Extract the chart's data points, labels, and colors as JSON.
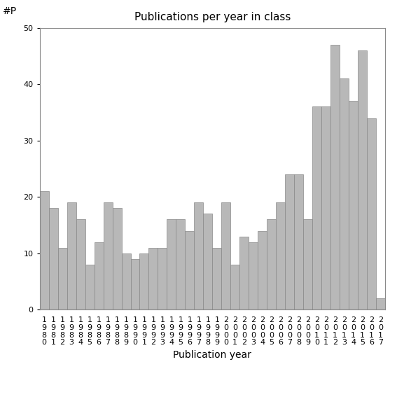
{
  "years": [
    "1980",
    "1981",
    "1982",
    "1983",
    "1984",
    "1985",
    "1986",
    "1987",
    "1988",
    "1989",
    "1990",
    "1991",
    "1992",
    "1993",
    "1994",
    "1995",
    "1996",
    "1997",
    "1998",
    "1999",
    "2000",
    "2001",
    "2002",
    "2003",
    "2004",
    "2005",
    "2006",
    "2007",
    "2008",
    "2009",
    "2010",
    "2011",
    "2012",
    "2013",
    "2014",
    "2015",
    "2016",
    "2017"
  ],
  "values": [
    21,
    18,
    11,
    19,
    16,
    8,
    12,
    19,
    18,
    10,
    9,
    10,
    11,
    11,
    16,
    16,
    14,
    19,
    17,
    11,
    19,
    8,
    13,
    12,
    14,
    16,
    19,
    24,
    24,
    16,
    36,
    36,
    47,
    41,
    37,
    46,
    34,
    2
  ],
  "bar_color": "#b8b8b8",
  "bar_edge_color": "#888888",
  "title": "Publications per year in class",
  "xlabel": "Publication year",
  "ylabel_annotation": "#P",
  "ylim": [
    0,
    50
  ],
  "yticks": [
    0,
    10,
    20,
    30,
    40,
    50
  ],
  "bg_color": "#ffffff",
  "title_fontsize": 11,
  "xlabel_fontsize": 10,
  "tick_label_fontsize": 8,
  "annotation_fontsize": 10
}
